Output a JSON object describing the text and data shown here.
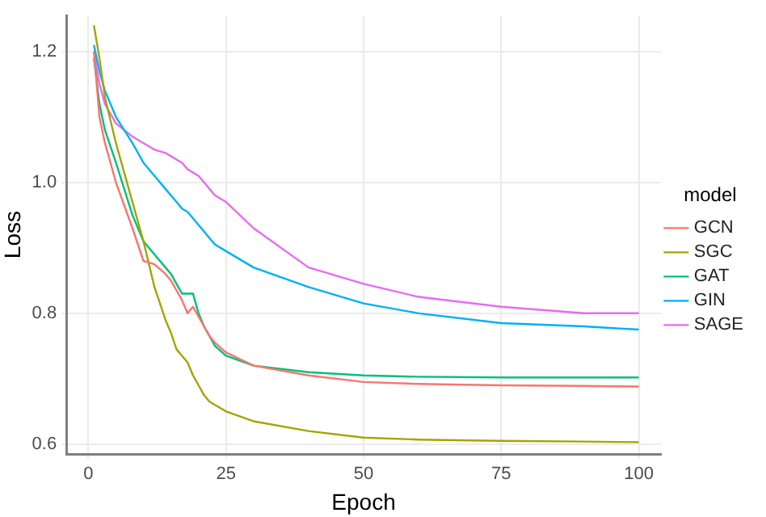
{
  "chart_data": {
    "type": "line",
    "xlabel": "Epoch",
    "ylabel": "Loss",
    "legend_title": "model",
    "legend": "right",
    "grid": true,
    "marker": "none",
    "line_style": "solid",
    "xlim": [
      -4,
      104
    ],
    "xticks": [
      0,
      25,
      50,
      75,
      100
    ],
    "ylim": [
      0.585,
      1.255
    ],
    "yticks": [
      0.6,
      0.8,
      {
        "value": 1,
        "label": "1.0"
      },
      1.2
    ],
    "x": [
      1,
      2,
      3,
      5,
      8,
      10,
      12,
      14,
      15,
      16,
      17,
      18,
      19,
      20,
      21,
      22,
      23,
      25,
      30,
      40,
      50,
      60,
      75,
      90,
      100
    ],
    "series": [
      {
        "name": "GCN",
        "color": "#f8766d",
        "values": [
          1.2,
          1.1,
          1.06,
          1.0,
          0.93,
          0.88,
          0.875,
          0.86,
          0.85,
          0.835,
          0.82,
          0.8,
          0.81,
          0.795,
          0.78,
          0.765,
          0.755,
          0.74,
          0.72,
          0.705,
          0.695,
          0.692,
          0.69,
          0.689,
          0.688
        ]
      },
      {
        "name": "SGC",
        "color": "#a3a500",
        "values": [
          1.24,
          1.19,
          1.13,
          1.06,
          0.97,
          0.91,
          0.84,
          0.79,
          0.77,
          0.745,
          0.735,
          0.725,
          0.705,
          0.69,
          0.675,
          0.665,
          0.66,
          0.65,
          0.635,
          0.62,
          0.61,
          0.607,
          0.605,
          0.604,
          0.603
        ]
      },
      {
        "name": "GAT",
        "color": "#00bf7d",
        "values": [
          1.19,
          1.12,
          1.08,
          1.03,
          0.95,
          0.91,
          0.89,
          0.87,
          0.86,
          0.845,
          0.83,
          0.83,
          0.83,
          0.8,
          0.78,
          0.765,
          0.75,
          0.735,
          0.72,
          0.71,
          0.705,
          0.703,
          0.702,
          0.702,
          0.702
        ]
      },
      {
        "name": "GIN",
        "color": "#00b0f6",
        "values": [
          1.21,
          1.17,
          1.14,
          1.1,
          1.06,
          1.03,
          1.01,
          0.99,
          0.98,
          0.97,
          0.96,
          0.955,
          0.945,
          0.935,
          0.925,
          0.915,
          0.905,
          0.895,
          0.87,
          0.84,
          0.815,
          0.8,
          0.785,
          0.78,
          0.775
        ]
      },
      {
        "name": "SAGE",
        "color": "#e76bf3",
        "values": [
          1.2,
          1.15,
          1.12,
          1.09,
          1.07,
          1.06,
          1.05,
          1.045,
          1.04,
          1.035,
          1.03,
          1.02,
          1.015,
          1.01,
          1.0,
          0.99,
          0.98,
          0.97,
          0.93,
          0.87,
          0.845,
          0.825,
          0.81,
          0.8,
          0.8
        ]
      }
    ]
  }
}
